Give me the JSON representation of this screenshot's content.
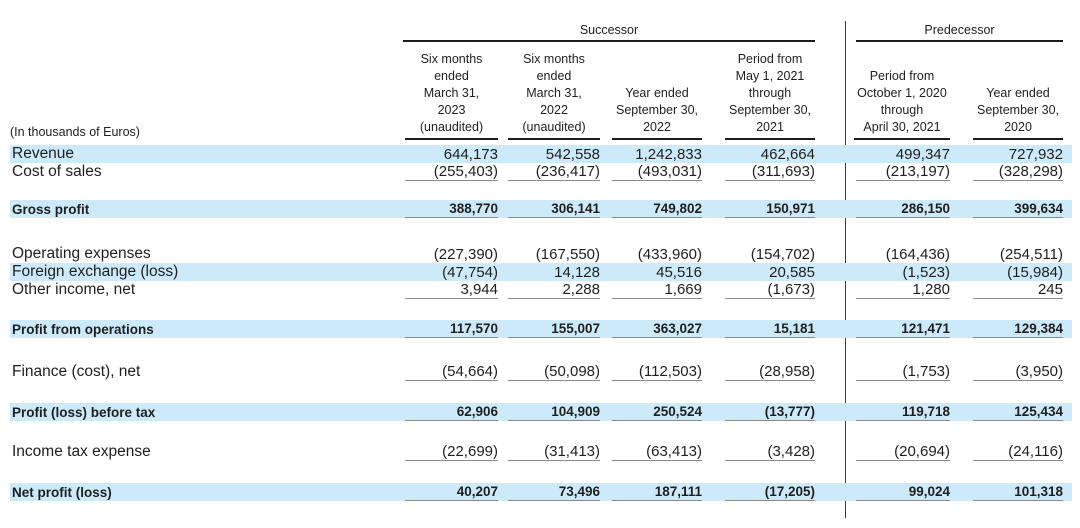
{
  "doc": {
    "unit_label": "(In thousands of Euros)",
    "sections": {
      "successor": "Successor",
      "predecessor": "Predecessor"
    },
    "columns": [
      {
        "lines": [
          "Six months",
          "ended",
          "March 31,",
          "2023",
          "(unaudited)"
        ]
      },
      {
        "lines": [
          "Six months",
          "ended",
          "March 31,",
          "2022",
          "(unaudited)"
        ]
      },
      {
        "lines": [
          "Year ended",
          "September 30,",
          "2022"
        ]
      },
      {
        "lines": [
          "Period from",
          "May 1, 2021",
          "through",
          "September 30,",
          "2021"
        ]
      },
      {
        "lines": [
          "Period from",
          "October 1, 2020",
          "through",
          "April 30, 2021"
        ]
      },
      {
        "lines": [
          "Year ended",
          "September 30,",
          "2020"
        ]
      }
    ],
    "rows": [
      {
        "label": "Revenue",
        "values": [
          "644,173",
          "542,558",
          "1,242,833",
          "462,664",
          "499,347",
          "727,932"
        ],
        "highlight": true,
        "bold": false,
        "underline": false,
        "gap_before": 0
      },
      {
        "label": "Cost of sales",
        "values": [
          "(255,403)",
          "(236,417)",
          "(493,031)",
          "(311,693)",
          "(213,197)",
          "(328,298)"
        ],
        "highlight": false,
        "bold": false,
        "underline": true,
        "gap_before": 0
      },
      {
        "label": "Gross profit",
        "values": [
          "388,770",
          "306,141",
          "749,802",
          "150,971",
          "286,150",
          "399,634"
        ],
        "highlight": true,
        "bold": true,
        "underline": true,
        "gap_before": 19
      },
      {
        "label": "Operating expenses",
        "values": [
          "(227,390)",
          "(167,550)",
          "(433,960)",
          "(154,702)",
          "(164,436)",
          "(254,511)"
        ],
        "highlight": false,
        "bold": false,
        "underline": false,
        "gap_before": 27
      },
      {
        "label": "Foreign exchange (loss)",
        "values": [
          "(47,754)",
          "14,128",
          "45,516",
          "20,585",
          "(1,523)",
          "(15,984)"
        ],
        "highlight": true,
        "bold": false,
        "underline": false,
        "gap_before": 0
      },
      {
        "label": "Other income, net",
        "values": [
          "3,944",
          "2,288",
          "1,669",
          "(1,673)",
          "1,280",
          "245"
        ],
        "highlight": false,
        "bold": false,
        "underline": true,
        "gap_before": 0
      },
      {
        "label": "Profit from operations",
        "values": [
          "117,570",
          "155,007",
          "363,027",
          "15,181",
          "121,471",
          "129,384"
        ],
        "highlight": true,
        "bold": true,
        "underline": true,
        "gap_before": 21
      },
      {
        "label": "Finance (cost), net",
        "values": [
          "(54,664)",
          "(50,098)",
          "(112,503)",
          "(28,958)",
          "(1,753)",
          "(3,950)"
        ],
        "highlight": false,
        "bold": false,
        "underline": true,
        "gap_before": 25
      },
      {
        "label": "Profit (loss) before tax",
        "values": [
          "62,906",
          "104,909",
          "250,524",
          "(13,777)",
          "119,718",
          "125,434"
        ],
        "highlight": true,
        "bold": true,
        "underline": true,
        "gap_before": 22
      },
      {
        "label": "Income tax expense",
        "values": [
          "(22,699)",
          "(31,413)",
          "(63,413)",
          "(3,428)",
          "(20,694)",
          "(24,116)"
        ],
        "highlight": false,
        "bold": false,
        "underline": true,
        "gap_before": 22
      },
      {
        "label": "Net profit (loss)",
        "values": [
          "40,207",
          "73,496",
          "187,111",
          "(17,205)",
          "99,024",
          "101,318"
        ],
        "highlight": true,
        "bold": true,
        "underline": true,
        "gap_before": 22
      }
    ],
    "colors": {
      "highlight": "#cdeafb",
      "rule_dark": "#1c1c1c",
      "rule_gray": "#8a8a8a",
      "text": "#1f1f1f"
    }
  }
}
